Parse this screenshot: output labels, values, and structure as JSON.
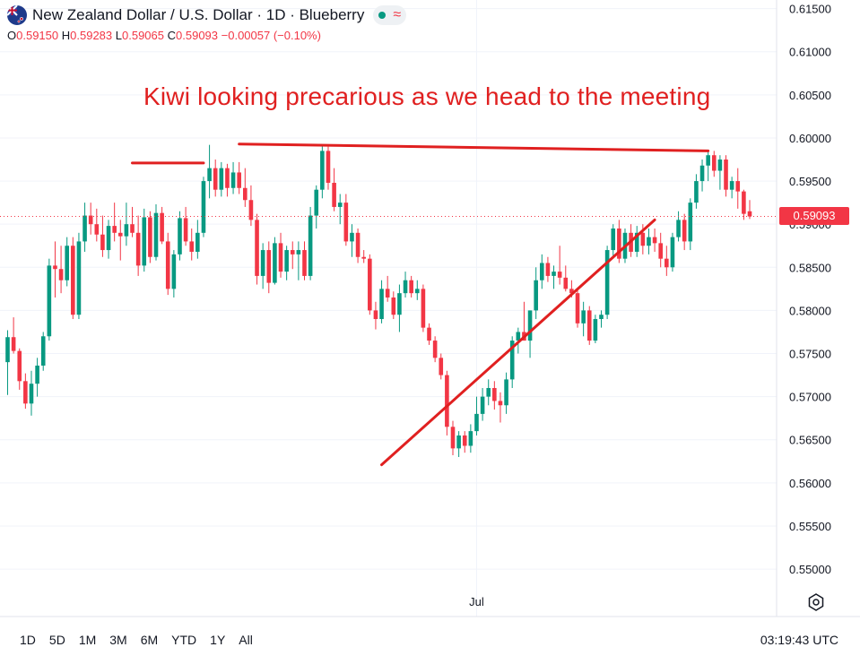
{
  "header": {
    "title": "New Zealand Dollar / U.S. Dollar · 1D · Blueberry",
    "ohlc": {
      "o_label": "O",
      "o_value": "0.59150",
      "h_label": "H",
      "h_value": "0.59283",
      "l_label": "L",
      "l_value": "0.59065",
      "c_label": "C",
      "c_value": "0.59093",
      "change": "−0.00057 (−0.10%)"
    },
    "status_icons": [
      "green-dot-icon",
      "wave-icon"
    ]
  },
  "annotation": "Kiwi looking precarious as we head to the meeting",
  "last_price_label": "0.59093",
  "range_buttons": [
    "1D",
    "5D",
    "1M",
    "3M",
    "6M",
    "YTD",
    "1Y",
    "All"
  ],
  "clock": "03:19:43 UTC",
  "colors": {
    "up": "#089981",
    "down": "#f23645",
    "annotation": "#e02020"
  },
  "chart_data": {
    "type": "candlestick",
    "ylim": [
      0.5445,
      0.616
    ],
    "yticks": [
      "0.61500",
      "0.61000",
      "0.60500",
      "0.60000",
      "0.59500",
      "0.59000",
      "0.58500",
      "0.58000",
      "0.57500",
      "0.57000",
      "0.56500",
      "0.56000",
      "0.55500",
      "0.55000"
    ],
    "xtick_labels": [
      {
        "label": "Jul",
        "index": 79
      }
    ],
    "candles": [
      [
        0.574,
        0.5777,
        0.5702,
        0.5769
      ],
      [
        0.5769,
        0.5792,
        0.575,
        0.5753
      ],
      [
        0.5753,
        0.5756,
        0.5708,
        0.5718
      ],
      [
        0.5718,
        0.5727,
        0.5686,
        0.5692
      ],
      [
        0.5692,
        0.573,
        0.5678,
        0.5715
      ],
      [
        0.5715,
        0.5745,
        0.57,
        0.5736
      ],
      [
        0.5736,
        0.5775,
        0.573,
        0.577
      ],
      [
        0.577,
        0.586,
        0.5765,
        0.5852
      ],
      [
        0.5852,
        0.588,
        0.5815,
        0.5848
      ],
      [
        0.5848,
        0.5875,
        0.582,
        0.5835
      ],
      [
        0.5835,
        0.5885,
        0.5828,
        0.5875
      ],
      [
        0.5875,
        0.5885,
        0.579,
        0.5795
      ],
      [
        0.5795,
        0.589,
        0.579,
        0.588
      ],
      [
        0.588,
        0.5925,
        0.5868,
        0.591
      ],
      [
        0.591,
        0.5925,
        0.5888,
        0.59
      ],
      [
        0.59,
        0.5918,
        0.588,
        0.5888
      ],
      [
        0.5888,
        0.591,
        0.5862,
        0.587
      ],
      [
        0.587,
        0.5905,
        0.586,
        0.5898
      ],
      [
        0.5898,
        0.5925,
        0.588,
        0.589
      ],
      [
        0.589,
        0.5905,
        0.5858,
        0.5886
      ],
      [
        0.5886,
        0.5925,
        0.5875,
        0.59
      ],
      [
        0.59,
        0.592,
        0.5885,
        0.589
      ],
      [
        0.589,
        0.591,
        0.584,
        0.5852
      ],
      [
        0.5852,
        0.5918,
        0.5845,
        0.5908
      ],
      [
        0.5908,
        0.5915,
        0.5855,
        0.5862
      ],
      [
        0.5862,
        0.5923,
        0.5858,
        0.5913
      ],
      [
        0.5913,
        0.592,
        0.5877,
        0.588
      ],
      [
        0.588,
        0.589,
        0.5818,
        0.5825
      ],
      [
        0.5825,
        0.587,
        0.5815,
        0.5865
      ],
      [
        0.5865,
        0.5915,
        0.5858,
        0.5907
      ],
      [
        0.5907,
        0.592,
        0.5875,
        0.588
      ],
      [
        0.588,
        0.5895,
        0.5858,
        0.5868
      ],
      [
        0.5868,
        0.5905,
        0.586,
        0.589
      ],
      [
        0.589,
        0.5955,
        0.5885,
        0.595
      ],
      [
        0.595,
        0.5992,
        0.593,
        0.5965
      ],
      [
        0.5965,
        0.5975,
        0.5932,
        0.594
      ],
      [
        0.594,
        0.5972,
        0.5932,
        0.5965
      ],
      [
        0.5965,
        0.597,
        0.5932,
        0.5942
      ],
      [
        0.5942,
        0.5972,
        0.5935,
        0.596
      ],
      [
        0.596,
        0.5972,
        0.5935,
        0.5942
      ],
      [
        0.5942,
        0.5965,
        0.592,
        0.5928
      ],
      [
        0.5928,
        0.5945,
        0.5898,
        0.5905
      ],
      [
        0.5905,
        0.5912,
        0.583,
        0.584
      ],
      [
        0.584,
        0.5878,
        0.5825,
        0.587
      ],
      [
        0.587,
        0.588,
        0.582,
        0.5832
      ],
      [
        0.5832,
        0.5885,
        0.583,
        0.5878
      ],
      [
        0.5878,
        0.589,
        0.5838,
        0.5845
      ],
      [
        0.5845,
        0.5875,
        0.5835,
        0.587
      ],
      [
        0.587,
        0.588,
        0.5848,
        0.5865
      ],
      [
        0.5865,
        0.588,
        0.5835,
        0.587
      ],
      [
        0.587,
        0.588,
        0.5835,
        0.584
      ],
      [
        0.584,
        0.592,
        0.5835,
        0.591
      ],
      [
        0.591,
        0.5945,
        0.5895,
        0.594
      ],
      [
        0.594,
        0.5992,
        0.593,
        0.5985
      ],
      [
        0.5985,
        0.599,
        0.594,
        0.5948
      ],
      [
        0.5948,
        0.5965,
        0.5915,
        0.592
      ],
      [
        0.592,
        0.5935,
        0.59,
        0.5925
      ],
      [
        0.5925,
        0.5935,
        0.5875,
        0.588
      ],
      [
        0.588,
        0.59,
        0.5862,
        0.589
      ],
      [
        0.589,
        0.5895,
        0.5855,
        0.5862
      ],
      [
        0.5862,
        0.587,
        0.5855,
        0.586
      ],
      [
        0.586,
        0.5865,
        0.5795,
        0.58
      ],
      [
        0.58,
        0.581,
        0.5778,
        0.579
      ],
      [
        0.579,
        0.5835,
        0.5785,
        0.5825
      ],
      [
        0.5825,
        0.584,
        0.581,
        0.5815
      ],
      [
        0.5815,
        0.5822,
        0.579,
        0.5795
      ],
      [
        0.5795,
        0.583,
        0.5775,
        0.582
      ],
      [
        0.582,
        0.5845,
        0.5815,
        0.5835
      ],
      [
        0.5835,
        0.584,
        0.5815,
        0.582
      ],
      [
        0.582,
        0.5835,
        0.5812,
        0.5825
      ],
      [
        0.5825,
        0.583,
        0.5775,
        0.578
      ],
      [
        0.578,
        0.5785,
        0.576,
        0.5765
      ],
      [
        0.5765,
        0.577,
        0.574,
        0.5745
      ],
      [
        0.5745,
        0.575,
        0.572,
        0.5725
      ],
      [
        0.5725,
        0.573,
        0.5655,
        0.5665
      ],
      [
        0.5665,
        0.5672,
        0.5632,
        0.564
      ],
      [
        0.564,
        0.566,
        0.563,
        0.5655
      ],
      [
        0.5655,
        0.566,
        0.5635,
        0.5643
      ],
      [
        0.5643,
        0.5668,
        0.5635,
        0.566
      ],
      [
        0.566,
        0.57,
        0.5655,
        0.568
      ],
      [
        0.568,
        0.571,
        0.5672,
        0.57
      ],
      [
        0.57,
        0.572,
        0.569,
        0.571
      ],
      [
        0.571,
        0.5718,
        0.5685,
        0.5695
      ],
      [
        0.5695,
        0.5705,
        0.567,
        0.569
      ],
      [
        0.569,
        0.5728,
        0.568,
        0.572
      ],
      [
        0.572,
        0.577,
        0.571,
        0.5765
      ],
      [
        0.5765,
        0.578,
        0.575,
        0.5775
      ],
      [
        0.5775,
        0.581,
        0.5765,
        0.5765
      ],
      [
        0.5765,
        0.58,
        0.5745,
        0.58
      ],
      [
        0.58,
        0.585,
        0.579,
        0.5835
      ],
      [
        0.5835,
        0.5865,
        0.5825,
        0.5855
      ],
      [
        0.5855,
        0.5862,
        0.5833,
        0.584
      ],
      [
        0.584,
        0.5852,
        0.5825,
        0.5845
      ],
      [
        0.5845,
        0.5875,
        0.583,
        0.5838
      ],
      [
        0.5838,
        0.5852,
        0.5822,
        0.5825
      ],
      [
        0.5825,
        0.5835,
        0.5815,
        0.582
      ],
      [
        0.582,
        0.5825,
        0.578,
        0.5785
      ],
      [
        0.5785,
        0.581,
        0.577,
        0.58
      ],
      [
        0.58,
        0.5805,
        0.576,
        0.5765
      ],
      [
        0.5765,
        0.5795,
        0.5762,
        0.579
      ],
      [
        0.579,
        0.58,
        0.578,
        0.5795
      ],
      [
        0.5795,
        0.5875,
        0.579,
        0.587
      ],
      [
        0.587,
        0.59,
        0.586,
        0.5895
      ],
      [
        0.5895,
        0.5905,
        0.5855,
        0.586
      ],
      [
        0.586,
        0.5895,
        0.5855,
        0.589
      ],
      [
        0.589,
        0.59,
        0.5862,
        0.5868
      ],
      [
        0.5868,
        0.5898,
        0.5862,
        0.589
      ],
      [
        0.589,
        0.59,
        0.5865,
        0.5875
      ],
      [
        0.5875,
        0.5895,
        0.5865,
        0.5885
      ],
      [
        0.5885,
        0.5895,
        0.5868,
        0.5878
      ],
      [
        0.5878,
        0.589,
        0.585,
        0.586
      ],
      [
        0.586,
        0.5875,
        0.584,
        0.585
      ],
      [
        0.585,
        0.589,
        0.5845,
        0.5885
      ],
      [
        0.5885,
        0.5915,
        0.588,
        0.5905
      ],
      [
        0.5905,
        0.5912,
        0.587,
        0.588
      ],
      [
        0.588,
        0.593,
        0.587,
        0.5925
      ],
      [
        0.5925,
        0.5958,
        0.5918,
        0.595
      ],
      [
        0.595,
        0.5975,
        0.5938,
        0.5968
      ],
      [
        0.5968,
        0.5985,
        0.595,
        0.598
      ],
      [
        0.598,
        0.5985,
        0.5955,
        0.5962
      ],
      [
        0.5962,
        0.598,
        0.594,
        0.5975
      ],
      [
        0.5975,
        0.598,
        0.5932,
        0.594
      ],
      [
        0.594,
        0.5955,
        0.593,
        0.595
      ],
      [
        0.595,
        0.5965,
        0.5918,
        0.5938
      ],
      [
        0.5938,
        0.594,
        0.5905,
        0.5912
      ],
      [
        0.5915,
        0.5928,
        0.5906,
        0.5909
      ]
    ],
    "drawings": [
      {
        "type": "resistance-line",
        "from": [
          21,
          0.5971
        ],
        "to": [
          33,
          0.5971
        ]
      },
      {
        "type": "resistance-line",
        "from": [
          39,
          0.5993
        ],
        "to": [
          118,
          0.5985
        ]
      },
      {
        "type": "trendline",
        "from": [
          63,
          0.5621
        ],
        "to": [
          109,
          0.5905
        ]
      }
    ]
  }
}
